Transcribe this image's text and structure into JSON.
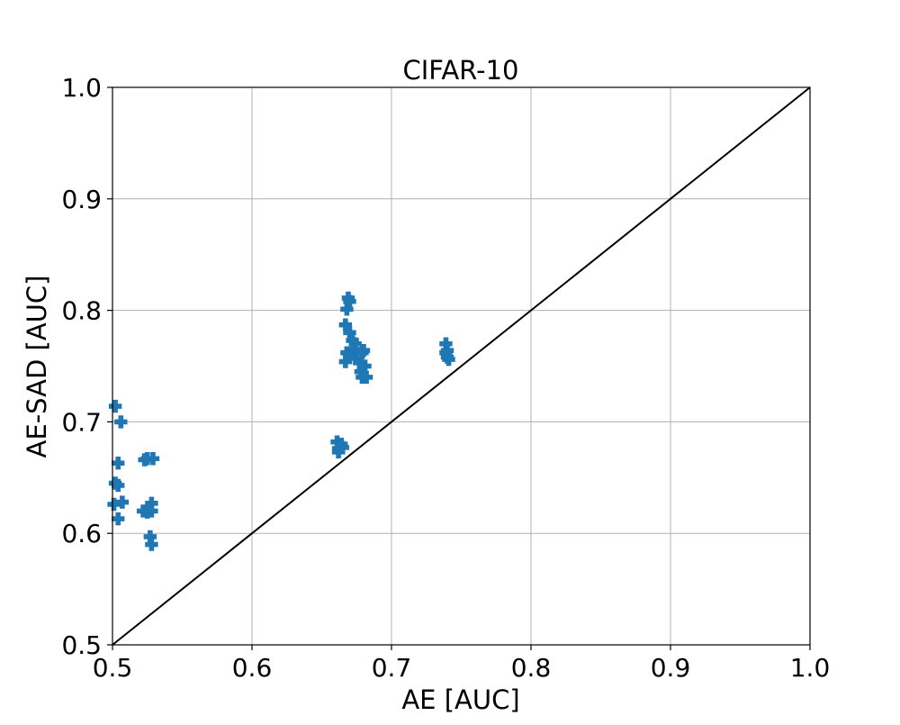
{
  "chart_data": {
    "type": "scatter",
    "title": "CIFAR-10",
    "xlabel": "AE [AUC]",
    "ylabel": "AE-SAD [AUC]",
    "xlim": [
      0.5,
      1.0
    ],
    "ylim": [
      0.5,
      1.0
    ],
    "xticks": [
      "0.5",
      "0.6",
      "0.7",
      "0.8",
      "0.9",
      "1.0"
    ],
    "yticks": [
      "0.5",
      "0.6",
      "0.7",
      "0.8",
      "0.9",
      "1.0"
    ],
    "grid": true,
    "marker": "plus-filled",
    "marker_color": "#1f77b4",
    "reference_line": {
      "from": [
        0.5,
        0.5
      ],
      "to": [
        1.0,
        1.0
      ],
      "color": "#000000"
    },
    "points": [
      [
        0.502,
        0.714
      ],
      [
        0.506,
        0.7
      ],
      [
        0.504,
        0.663
      ],
      [
        0.502,
        0.645
      ],
      [
        0.504,
        0.643
      ],
      [
        0.501,
        0.626
      ],
      [
        0.507,
        0.628
      ],
      [
        0.504,
        0.613
      ],
      [
        0.523,
        0.666
      ],
      [
        0.525,
        0.667
      ],
      [
        0.529,
        0.667
      ],
      [
        0.522,
        0.62
      ],
      [
        0.525,
        0.619
      ],
      [
        0.528,
        0.627
      ],
      [
        0.528,
        0.62
      ],
      [
        0.527,
        0.597
      ],
      [
        0.528,
        0.59
      ],
      [
        0.661,
        0.682
      ],
      [
        0.662,
        0.676
      ],
      [
        0.664,
        0.68
      ],
      [
        0.665,
        0.677
      ],
      [
        0.662,
        0.673
      ],
      [
        0.669,
        0.811
      ],
      [
        0.67,
        0.808
      ],
      [
        0.668,
        0.801
      ],
      [
        0.667,
        0.787
      ],
      [
        0.67,
        0.78
      ],
      [
        0.672,
        0.773
      ],
      [
        0.674,
        0.77
      ],
      [
        0.673,
        0.765
      ],
      [
        0.668,
        0.762
      ],
      [
        0.667,
        0.754
      ],
      [
        0.67,
        0.758
      ],
      [
        0.675,
        0.757
      ],
      [
        0.677,
        0.753
      ],
      [
        0.679,
        0.762
      ],
      [
        0.68,
        0.764
      ],
      [
        0.678,
        0.745
      ],
      [
        0.679,
        0.74
      ],
      [
        0.682,
        0.74
      ],
      [
        0.681,
        0.75
      ],
      [
        0.739,
        0.77
      ],
      [
        0.74,
        0.764
      ],
      [
        0.74,
        0.758
      ],
      [
        0.741,
        0.756
      ],
      [
        0.739,
        0.762
      ]
    ]
  }
}
